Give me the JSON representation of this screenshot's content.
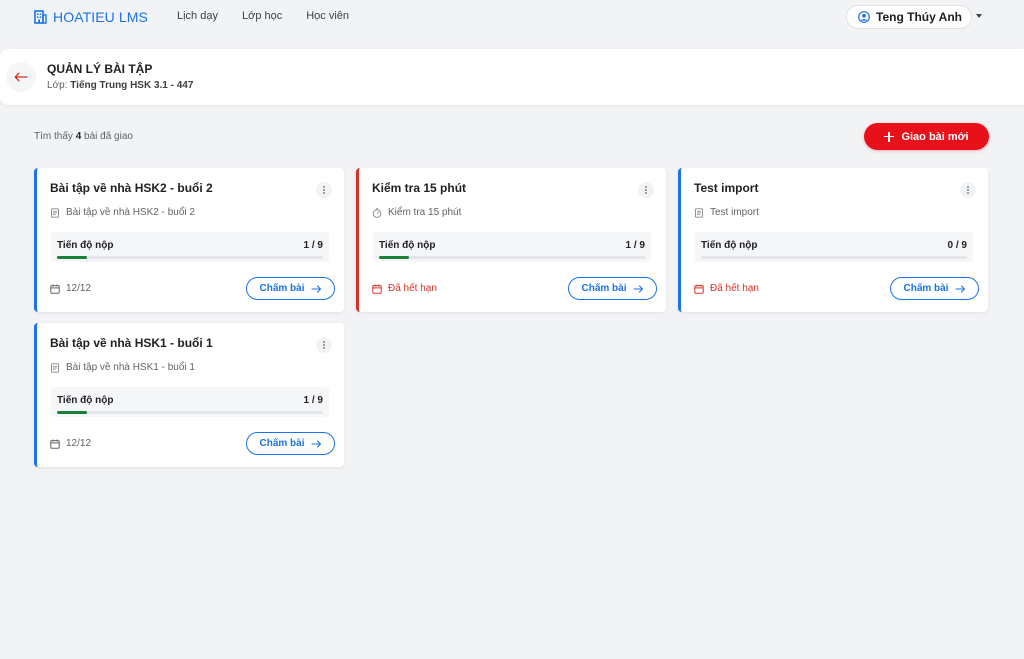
{
  "brand": {
    "name": "HOATIEU LMS"
  },
  "nav": {
    "items": [
      "Lịch dạy",
      "Lớp học",
      "Học viên"
    ]
  },
  "user": {
    "name": "Teng Thúy Anh"
  },
  "header": {
    "title": "QUẢN LÝ BÀI TẬP",
    "class_prefix": "Lớp:",
    "class_name": "Tiếng Trung HSK 3.1 - 447"
  },
  "summary": {
    "prefix": "Tìm thấy",
    "count": "4",
    "suffix": "bài đã giao"
  },
  "new_button": {
    "label": "Giao bài mới"
  },
  "colors": {
    "primary": "#1a73e8",
    "danger": "#e8101b",
    "expired": "#d93025",
    "progress": "#188038"
  },
  "cards": [
    {
      "title": "Bài tập về nhà HSK2 - buổi 2",
      "desc": "Bài tập về nhà HSK2 - buổi 2",
      "desc_icon": "document-icon",
      "progress_label": "Tiến độ nộp",
      "progress_count": "1 / 9",
      "progress_fraction": 0.111,
      "date": "12/12",
      "expired": false,
      "grade_label": "Chấm bài"
    },
    {
      "title": "Kiểm tra 15 phút",
      "desc": "Kiểm tra 15 phút",
      "desc_icon": "timer-icon",
      "progress_label": "Tiến độ nộp",
      "progress_count": "1 / 9",
      "progress_fraction": 0.111,
      "date": "Đã hết hạn",
      "expired": true,
      "grade_label": "Chấm bài"
    },
    {
      "title": "Test import",
      "desc": "Test import",
      "desc_icon": "document-icon",
      "progress_label": "Tiến độ nộp",
      "progress_count": "0 / 9",
      "progress_fraction": 0,
      "date": "Đã hết hạn",
      "expired": true,
      "grade_label": "Chấm bài"
    },
    {
      "title": "Bài tập về nhà HSK1 - buổi 1",
      "desc": "Bài tập về nhà HSK1 - buổi 1",
      "desc_icon": "document-icon",
      "progress_label": "Tiến độ nộp",
      "progress_count": "1 / 9",
      "progress_fraction": 0.111,
      "date": "12/12",
      "expired": false,
      "grade_label": "Chấm bài"
    }
  ]
}
